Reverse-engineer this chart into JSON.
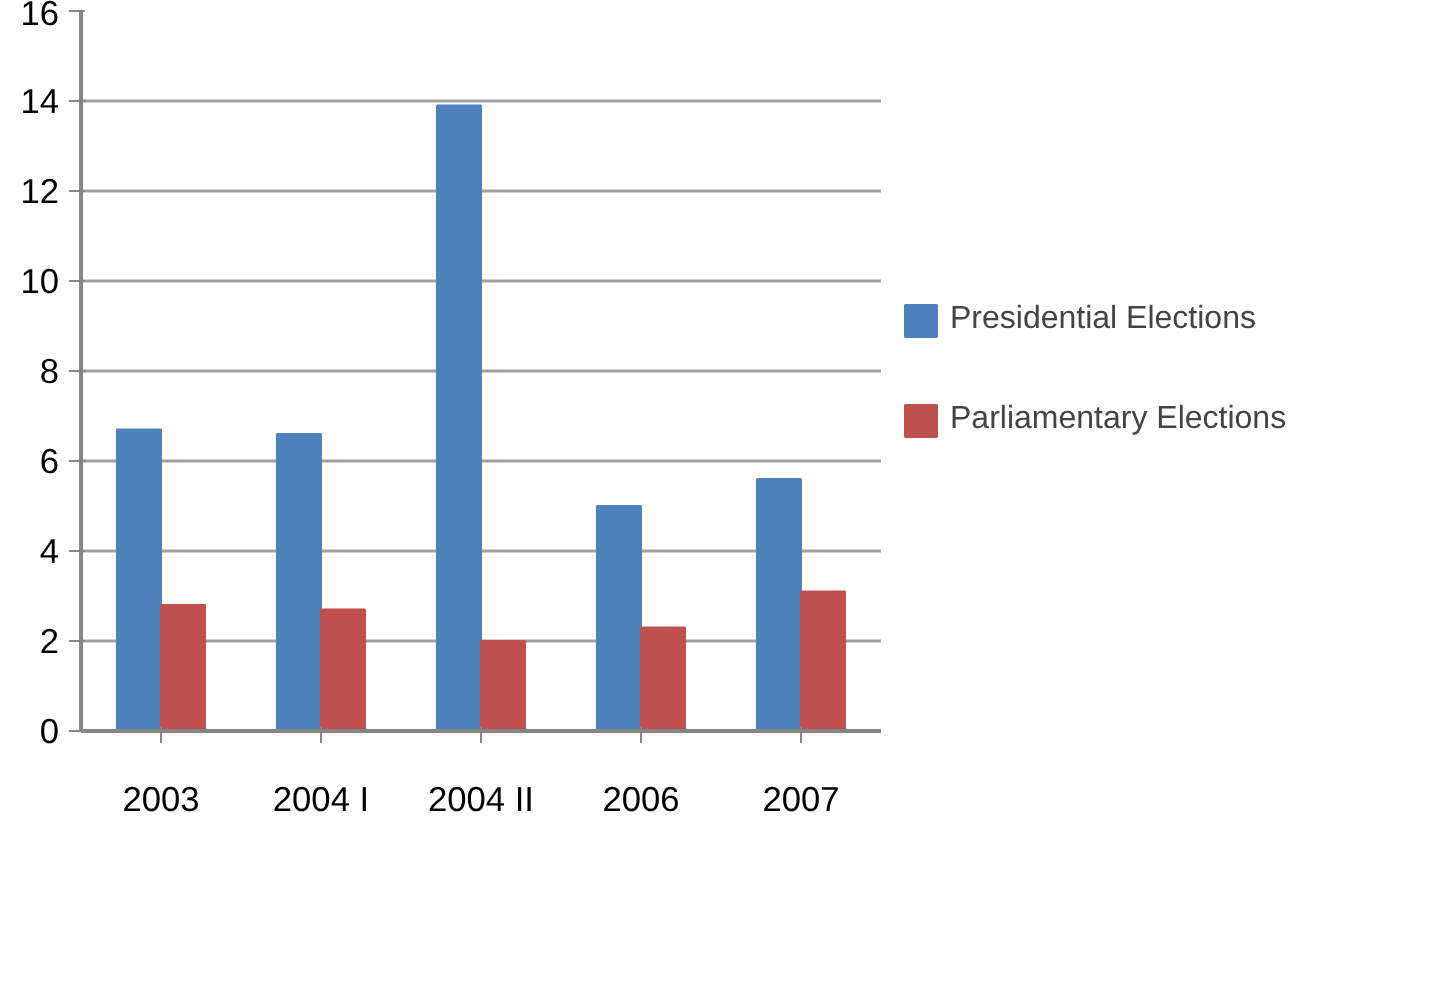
{
  "chart_data": {
    "type": "bar",
    "categories": [
      "2003",
      "2004 I",
      "2004 II",
      "2006",
      "2007"
    ],
    "series": [
      {
        "name": "Presidential Elections",
        "color": "#4f81bd",
        "values": [
          6.7,
          6.6,
          13.9,
          5.0,
          5.6
        ]
      },
      {
        "name": "Parliamentary Elections",
        "color": "#c0504d",
        "values": [
          2.8,
          2.7,
          2.0,
          2.3,
          3.1
        ]
      }
    ],
    "ylim": [
      0,
      16
    ],
    "yticks": [
      0,
      2,
      4,
      6,
      8,
      10,
      12,
      14,
      16
    ],
    "grid": "y",
    "legend": "right"
  }
}
